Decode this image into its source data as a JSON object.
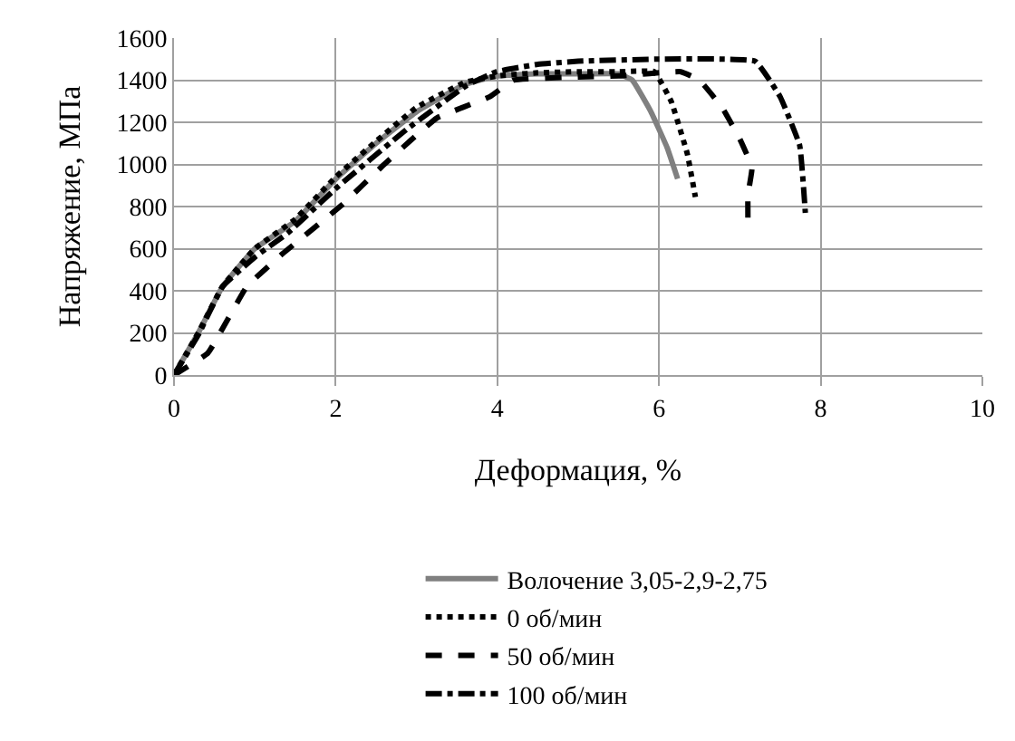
{
  "chart_data": {
    "type": "line",
    "xlabel": "Деформация, %",
    "ylabel": "Напряжение, МПа",
    "xlim": [
      0,
      10
    ],
    "xticks": [
      0,
      2,
      4,
      6,
      8,
      10
    ],
    "ylim": [
      0,
      1600
    ],
    "yticks": [
      0,
      200,
      400,
      600,
      800,
      1000,
      1200,
      1400,
      1600
    ],
    "grid": true,
    "legend": "bottom",
    "marker": "none",
    "series": [
      {
        "name": "Волочение 3,05-2,9-2,75",
        "color": "#808080",
        "line_style": "solid",
        "x": [
          0,
          0.3,
          0.6,
          1.0,
          1.5,
          2.0,
          2.5,
          3.0,
          3.6,
          4.0,
          4.5,
          5.0,
          5.5,
          5.67,
          5.9,
          6.1,
          6.23
        ],
        "values": [
          0,
          200,
          420,
          600,
          730,
          930,
          1100,
          1250,
          1380,
          1420,
          1430,
          1430,
          1430,
          1400,
          1250,
          1080,
          932
        ]
      },
      {
        "name": "0 об/мин",
        "color": "#000000",
        "line_style": "dotted",
        "x": [
          0,
          0.3,
          0.6,
          1.0,
          1.5,
          2.0,
          2.5,
          3.0,
          3.6,
          4.0,
          4.5,
          5.0,
          5.5,
          5.94,
          6.15,
          6.35,
          6.45
        ],
        "values": [
          0,
          200,
          420,
          600,
          740,
          940,
          1110,
          1270,
          1390,
          1420,
          1435,
          1440,
          1440,
          1440,
          1300,
          1050,
          845
        ]
      },
      {
        "name": "50 об/мин",
        "color": "#000000",
        "line_style": "dashed",
        "x": [
          0,
          0.42,
          0.9,
          1.34,
          2.07,
          2.6,
          3.25,
          3.91,
          4.2,
          5.0,
          5.5,
          6.27,
          6.5,
          6.78,
          7.0,
          7.15,
          7.1,
          7.1
        ],
        "values": [
          0,
          105,
          420,
          575,
          805,
          1000,
          1220,
          1322,
          1400,
          1415,
          1420,
          1440,
          1400,
          1270,
          1120,
          985,
          855,
          720
        ]
      },
      {
        "name": "100 об/мин",
        "color": "#000000",
        "line_style": "dashdot",
        "x": [
          0,
          0.3,
          0.6,
          1.0,
          1.41,
          2.0,
          2.88,
          3.62,
          3.99,
          4.5,
          5.0,
          6.0,
          7.19,
          7.5,
          7.74,
          7.81
        ],
        "values": [
          0,
          190,
          420,
          560,
          675,
          885,
          1167,
          1375,
          1440,
          1475,
          1490,
          1500,
          1490,
          1320,
          1090,
          770
        ]
      }
    ]
  }
}
